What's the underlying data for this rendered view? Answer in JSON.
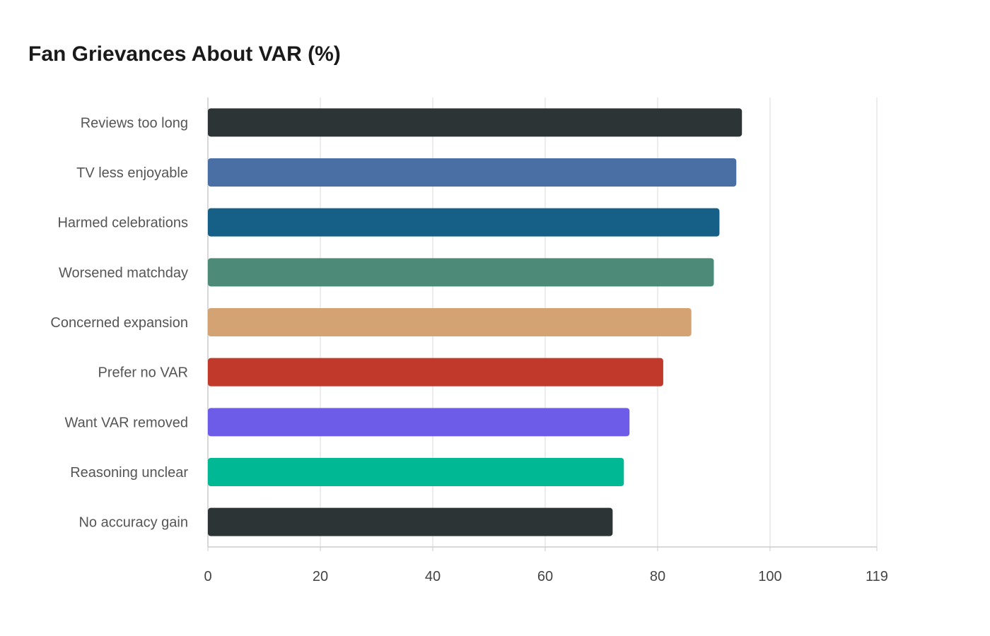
{
  "chart_data": {
    "type": "bar",
    "orientation": "horizontal",
    "title": "Fan Grievances About VAR (%)",
    "xlabel": "",
    "ylabel": "",
    "xlim": [
      0,
      119
    ],
    "x_ticks": [
      0,
      20,
      40,
      60,
      80,
      100,
      119
    ],
    "grid": true,
    "categories": [
      "Reviews too long",
      "TV less enjoyable",
      "Harmed celebrations",
      "Worsened matchday",
      "Concerned expansion",
      "Prefer no VAR",
      "Want VAR removed",
      "Reasoning unclear",
      "No accuracy gain"
    ],
    "values": [
      95,
      94,
      91,
      90,
      86,
      81,
      75,
      74,
      72
    ],
    "colors": [
      "#2d3436",
      "#4a6fa5",
      "#166088",
      "#4d8b78",
      "#d4a373",
      "#c0392b",
      "#6c5ce7",
      "#00b894",
      "#2d3436"
    ]
  }
}
